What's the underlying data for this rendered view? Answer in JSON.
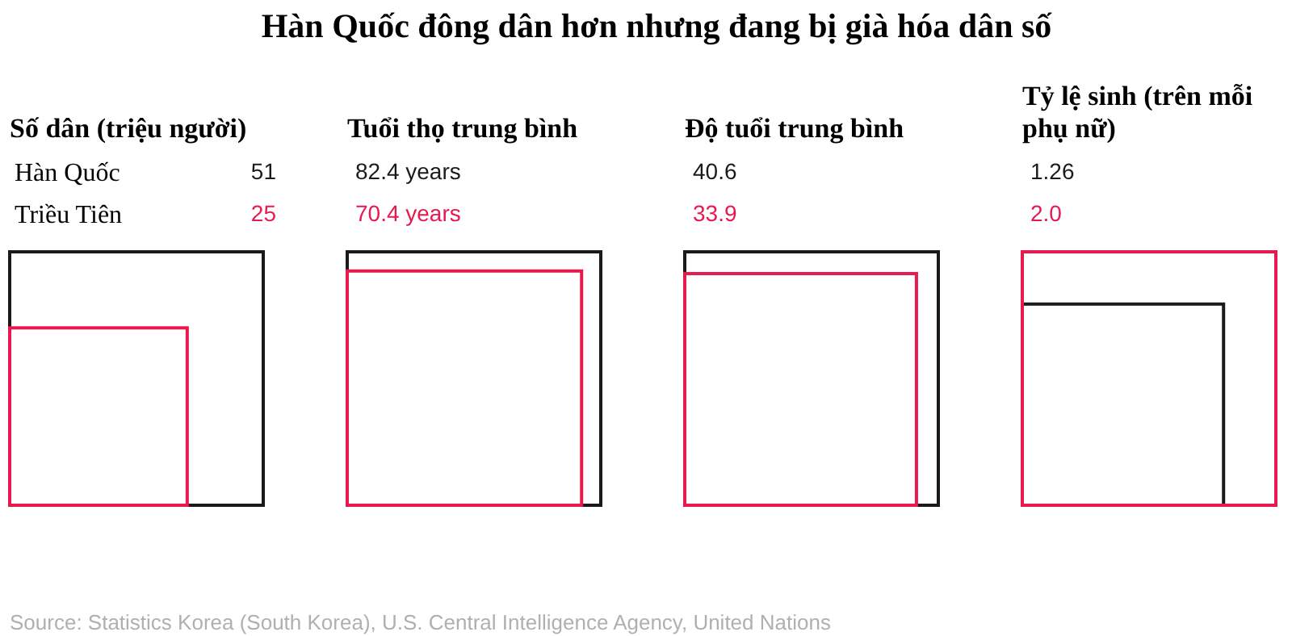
{
  "chart_data": [
    {
      "type": "other",
      "title": "Hàn Quốc đông dân hơn nhưng đang bị già hóa dân số",
      "subtitle": "Số dân (triệu người)",
      "categories": [
        "Hàn Quốc",
        "Triều Tiên"
      ],
      "values": [
        51,
        25
      ],
      "value_labels": [
        "51",
        "25"
      ],
      "colors": [
        "#1a1a1a",
        "#e8194f"
      ]
    },
    {
      "type": "other",
      "subtitle": "Tuổi thọ trung bình",
      "categories": [
        null,
        null
      ],
      "values": [
        82.4,
        70.4
      ],
      "value_labels": [
        "82.4 years",
        "70.4 years"
      ],
      "colors": [
        "#1a1a1a",
        "#e8194f"
      ]
    },
    {
      "type": "other",
      "subtitle": "Độ tuổi trung bình",
      "categories": [
        null,
        null
      ],
      "values": [
        40.6,
        33.9
      ],
      "value_labels": [
        "40.6",
        "33.9"
      ],
      "colors": [
        "#1a1a1a",
        "#e8194f"
      ]
    },
    {
      "type": "other",
      "subtitle": "Tỷ lệ sinh (trên mỗi phụ nữ)",
      "categories": [
        null,
        null
      ],
      "values": [
        1.26,
        2.0
      ],
      "value_labels": [
        "1.26",
        "2.0"
      ],
      "colors": [
        "#1a1a1a",
        "#e8194f"
      ],
      "annotations": [
        "Source: Statistics Korea (South Korea), U.S. Central Intelligence Agency, United Nations"
      ]
    }
  ]
}
